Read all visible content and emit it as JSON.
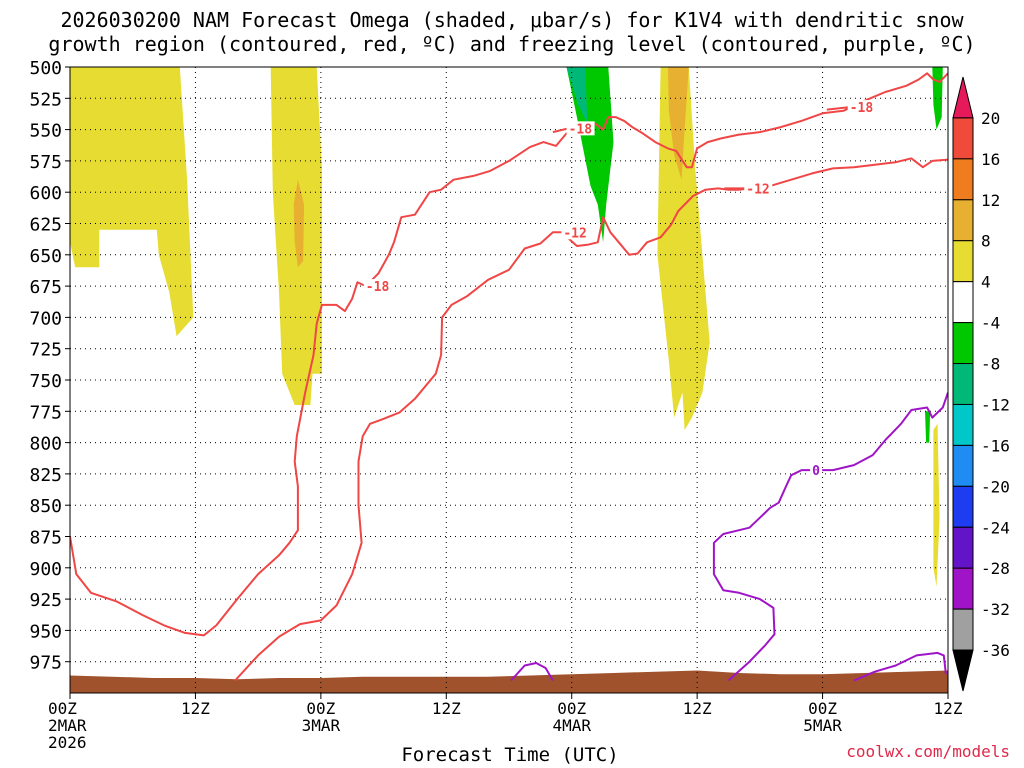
{
  "title_line1": "2026030200 NAM Forecast Omega (shaded, μbar/s) for K1V4 with dendritic snow",
  "title_line2": "growth region (contoured, red, ºC) and freezing level (contoured, purple, ºC)",
  "credit": "coolwx.com/models",
  "chart_data": {
    "type": "area",
    "xlabel": "Forecast Time (UTC)",
    "ylabel": "",
    "x_unit": "forecast hour",
    "xlim": [
      0,
      84
    ],
    "ylim": [
      500,
      1000
    ],
    "y_inverted": true,
    "y_ticks": [
      500,
      525,
      550,
      575,
      600,
      625,
      650,
      675,
      700,
      725,
      750,
      775,
      800,
      825,
      850,
      875,
      900,
      925,
      950,
      975
    ],
    "x_ticks": [
      {
        "x": 0,
        "lines": [
          "00Z",
          "2MAR",
          "2026"
        ]
      },
      {
        "x": 12,
        "lines": [
          "12Z"
        ]
      },
      {
        "x": 24,
        "lines": [
          "00Z",
          "3MAR"
        ]
      },
      {
        "x": 36,
        "lines": [
          "12Z"
        ]
      },
      {
        "x": 48,
        "lines": [
          "00Z",
          "4MAR"
        ]
      },
      {
        "x": 60,
        "lines": [
          "12Z"
        ]
      },
      {
        "x": 72,
        "lines": [
          "00Z",
          "5MAR"
        ]
      },
      {
        "x": 84,
        "lines": [
          "12Z"
        ]
      }
    ],
    "grid": true,
    "colorbar": {
      "labels": [
        "20",
        "16",
        "12",
        "8",
        "4",
        "-4",
        "-8",
        "-12",
        "-16",
        "-20",
        "-24",
        "-28",
        "-32",
        "-36"
      ],
      "colors": [
        "#e6195a",
        "#f04b3a",
        "#f07c20",
        "#e8b030",
        "#e6dc32",
        "#ffffff",
        "#00c800",
        "#00b878",
        "#00c8c8",
        "#1e8cf0",
        "#1e3cf0",
        "#6414c8",
        "#a014c8",
        "#a0a0a0",
        "#000000"
      ]
    },
    "omega_regions": [
      {
        "value": 4,
        "color": "#e6dc32",
        "points": [
          [
            0,
            500
          ],
          [
            10.5,
            500
          ],
          [
            11.2,
            590
          ],
          [
            11.8,
            700
          ],
          [
            10.2,
            715
          ],
          [
            9.5,
            680
          ],
          [
            8.5,
            650
          ],
          [
            8.3,
            630
          ],
          [
            6.2,
            630
          ],
          [
            4.5,
            630
          ],
          [
            2.8,
            630
          ],
          [
            2.8,
            660
          ],
          [
            0.5,
            660
          ],
          [
            0,
            640
          ]
        ]
      },
      {
        "value": 4,
        "color": "#e6dc32",
        "points": [
          [
            19.2,
            500
          ],
          [
            23.6,
            500
          ],
          [
            24.1,
            580
          ],
          [
            24.1,
            745
          ],
          [
            23.2,
            745
          ],
          [
            23,
            770
          ],
          [
            21.5,
            770
          ],
          [
            20.3,
            745
          ],
          [
            20,
            680
          ],
          [
            19.4,
            600
          ]
        ]
      },
      {
        "value": 8,
        "color": "#e8b030",
        "points": [
          [
            21.8,
            590
          ],
          [
            22.4,
            610
          ],
          [
            22.3,
            655
          ],
          [
            21.8,
            660
          ],
          [
            21.5,
            640
          ],
          [
            21.4,
            610
          ]
        ]
      },
      {
        "value": -8,
        "color": "#00c800",
        "points": [
          [
            47.5,
            500
          ],
          [
            51.5,
            500
          ],
          [
            52,
            560
          ],
          [
            51.3,
            610
          ],
          [
            51,
            640
          ],
          [
            50.5,
            610
          ],
          [
            49.8,
            595
          ],
          [
            48.5,
            540
          ]
        ]
      },
      {
        "value": -12,
        "color": "#00b878",
        "points": [
          [
            47.5,
            500
          ],
          [
            49.3,
            500
          ],
          [
            49.5,
            545
          ],
          [
            48.6,
            530
          ]
        ]
      },
      {
        "value": 4,
        "color": "#e6dc32",
        "points": [
          [
            56.5,
            500
          ],
          [
            59.2,
            500
          ],
          [
            59.8,
            580
          ],
          [
            61.2,
            720
          ],
          [
            60.5,
            760
          ],
          [
            59.5,
            780
          ],
          [
            58.8,
            790
          ],
          [
            58.6,
            760
          ],
          [
            57.8,
            780
          ],
          [
            57.3,
            735
          ],
          [
            56.2,
            650
          ]
        ]
      },
      {
        "value": 8,
        "color": "#e8b030",
        "points": [
          [
            57.2,
            500
          ],
          [
            59.2,
            500
          ],
          [
            58.8,
            550
          ],
          [
            58.5,
            590
          ],
          [
            57.8,
            570
          ],
          [
            57.3,
            535
          ]
        ]
      },
      {
        "value": -8,
        "color": "#00c800",
        "points": [
          [
            82.5,
            500
          ],
          [
            83.5,
            500
          ],
          [
            83.4,
            540
          ],
          [
            82.9,
            550
          ],
          [
            82.6,
            530
          ]
        ]
      },
      {
        "value": -8,
        "color": "#00c800",
        "points": [
          [
            81.8,
            775
          ],
          [
            82.3,
            775
          ],
          [
            82.2,
            800
          ],
          [
            81.9,
            800
          ]
        ]
      },
      {
        "value": 4,
        "color": "#e6dc32",
        "points": [
          [
            82.6,
            790
          ],
          [
            83.0,
            785
          ],
          [
            83.2,
            860
          ],
          [
            82.9,
            915
          ],
          [
            82.6,
            900
          ]
        ]
      }
    ],
    "contours": [
      {
        "label": "-18",
        "color": "#f04646",
        "points": [
          [
            0,
            875
          ],
          [
            0.6,
            905
          ],
          [
            2,
            920
          ],
          [
            4.5,
            927
          ],
          [
            7,
            938
          ],
          [
            9,
            946
          ],
          [
            11,
            952
          ],
          [
            12.8,
            954
          ],
          [
            14,
            946
          ],
          [
            16,
            925
          ],
          [
            18,
            905
          ],
          [
            20,
            890
          ],
          [
            21,
            880
          ],
          [
            21.8,
            870
          ],
          [
            21.8,
            835
          ],
          [
            21.5,
            815
          ],
          [
            21.7,
            795
          ],
          [
            22.5,
            760
          ],
          [
            23.3,
            730
          ],
          [
            23.6,
            705
          ],
          [
            24.1,
            690
          ],
          [
            25.5,
            690
          ],
          [
            26.3,
            695
          ],
          [
            27,
            685
          ],
          [
            27.5,
            672
          ],
          [
            28.3,
            675
          ],
          [
            29.5,
            665
          ],
          [
            30.5,
            650
          ],
          [
            31,
            640
          ],
          [
            31.7,
            620
          ],
          [
            33,
            618
          ],
          [
            34.4,
            600
          ],
          [
            35.5,
            598
          ],
          [
            36.7,
            590
          ],
          [
            38.6,
            587
          ],
          [
            40.2,
            583
          ],
          [
            42,
            575
          ],
          [
            44,
            564
          ],
          [
            45.3,
            560
          ],
          [
            46.5,
            563
          ],
          [
            47.5,
            553
          ],
          [
            48.6,
            547
          ],
          [
            49.6,
            547
          ],
          [
            50.2,
            545
          ],
          [
            51,
            550
          ],
          [
            51.5,
            540
          ],
          [
            52.2,
            540
          ],
          [
            53,
            543
          ],
          [
            53.8,
            548
          ],
          [
            54.8,
            553
          ],
          [
            56,
            560
          ],
          [
            57.2,
            565
          ],
          [
            58,
            567
          ],
          [
            59,
            580
          ],
          [
            59.5,
            580
          ],
          [
            60,
            565
          ],
          [
            61,
            560
          ],
          [
            62.3,
            557
          ],
          [
            64,
            554
          ],
          [
            66,
            552
          ],
          [
            68,
            548
          ],
          [
            70,
            543
          ],
          [
            72,
            537
          ],
          [
            74,
            535
          ],
          [
            76,
            527
          ],
          [
            78,
            520
          ],
          [
            80,
            515
          ],
          [
            81.2,
            510
          ],
          [
            82,
            505
          ],
          [
            82.6,
            510
          ],
          [
            83.2,
            512
          ],
          [
            84,
            505
          ]
        ],
        "label_at": [
          28.3,
          675
        ]
      },
      {
        "label": "-18",
        "color": "#f04646",
        "points": [
          [
            46.2,
            552
          ],
          [
            47.7,
            549
          ]
        ],
        "label_at": [
          47.7,
          549
        ]
      },
      {
        "label": "-18",
        "color": "#f04646",
        "points": [
          [
            72.4,
            534
          ],
          [
            74.6,
            532
          ]
        ],
        "label_at": [
          74.6,
          532
        ]
      },
      {
        "label": "-12",
        "color": "#f04646",
        "points": [
          [
            15.8,
            990
          ],
          [
            18,
            970
          ],
          [
            20,
            955
          ],
          [
            22,
            945
          ],
          [
            24,
            942
          ],
          [
            25.5,
            930
          ],
          [
            27,
            905
          ],
          [
            27.9,
            880
          ],
          [
            27.6,
            850
          ],
          [
            27.6,
            815
          ],
          [
            28,
            795
          ],
          [
            28.7,
            785
          ],
          [
            30,
            781
          ],
          [
            31.5,
            776
          ],
          [
            33,
            765
          ],
          [
            35,
            745
          ],
          [
            35.5,
            730
          ],
          [
            35.6,
            700
          ],
          [
            36.5,
            690
          ],
          [
            38,
            683
          ],
          [
            40,
            670
          ],
          [
            42,
            662
          ],
          [
            43.5,
            645
          ],
          [
            45,
            641
          ],
          [
            46.2,
            632
          ],
          [
            47.2,
            632
          ],
          [
            47.7,
            637
          ],
          [
            48.5,
            643
          ],
          [
            49.5,
            642
          ],
          [
            50.5,
            640
          ],
          [
            51,
            620
          ],
          [
            51.7,
            632
          ],
          [
            52.5,
            640
          ],
          [
            53.5,
            650
          ],
          [
            54.3,
            649
          ],
          [
            55.2,
            640
          ],
          [
            56.5,
            636
          ],
          [
            57.5,
            626
          ],
          [
            58.2,
            615
          ],
          [
            59.6,
            603
          ],
          [
            60.8,
            598
          ],
          [
            62,
            597
          ],
          [
            63,
            598
          ],
          [
            64,
            598
          ],
          [
            65,
            597
          ],
          [
            67,
            595
          ],
          [
            69,
            590
          ],
          [
            71,
            585
          ],
          [
            73,
            581
          ],
          [
            75,
            580
          ],
          [
            77,
            578
          ],
          [
            79,
            576
          ],
          [
            80.5,
            573
          ],
          [
            81.6,
            580
          ],
          [
            82.5,
            575
          ],
          [
            84,
            574
          ]
        ],
        "label_at": [
          47.2,
          632
        ]
      },
      {
        "label": "-12",
        "color": "#f04646",
        "points": [
          [
            62.6,
            597
          ],
          [
            64.7,
            597
          ]
        ],
        "label_at": [
          64.7,
          597
        ]
      },
      {
        "label": "0",
        "color": "#a014c8",
        "points": [
          [
            42.2,
            990
          ],
          [
            43.5,
            978
          ],
          [
            44.6,
            976
          ],
          [
            45.5,
            980
          ],
          [
            46.2,
            990
          ]
        ],
        "label_at": null
      },
      {
        "label": "0",
        "color": "#a014c8",
        "points": [
          [
            63,
            990
          ],
          [
            65,
            975
          ],
          [
            66.5,
            962
          ],
          [
            67.4,
            953
          ],
          [
            67.3,
            932
          ],
          [
            66,
            925
          ],
          [
            64,
            920
          ],
          [
            62.5,
            918
          ],
          [
            61.6,
            905
          ],
          [
            61.6,
            880
          ],
          [
            62.5,
            873
          ],
          [
            64,
            870
          ],
          [
            65,
            868
          ],
          [
            66,
            860
          ],
          [
            67,
            852
          ],
          [
            67.8,
            848
          ],
          [
            68.5,
            835
          ],
          [
            69,
            826
          ],
          [
            70,
            822
          ],
          [
            71,
            822
          ],
          [
            73,
            822
          ],
          [
            75,
            818
          ],
          [
            76.8,
            810
          ],
          [
            78,
            798
          ],
          [
            79.5,
            785
          ],
          [
            80.5,
            774
          ],
          [
            82,
            772
          ],
          [
            82.5,
            780
          ],
          [
            83.5,
            772
          ],
          [
            84,
            760
          ]
        ],
        "label_at": [
          71,
          822
        ]
      },
      {
        "label": "0",
        "color": "#a014c8",
        "points": [
          [
            75,
            990
          ],
          [
            77,
            983
          ],
          [
            79,
            978
          ],
          [
            81,
            970
          ],
          [
            83,
            968
          ],
          [
            83.6,
            970
          ],
          [
            83.8,
            985
          ]
        ],
        "label_at": null
      }
    ],
    "terrain": {
      "color": "#a0522d",
      "x": [
        0,
        4,
        8,
        12,
        16,
        20,
        24,
        28,
        32,
        36,
        40,
        44,
        48,
        52,
        56,
        60,
        64,
        68,
        72,
        76,
        80,
        84
      ],
      "surface_pressure": [
        986,
        987,
        988,
        988,
        989,
        988,
        988,
        987,
        987,
        987,
        987,
        986,
        985,
        984,
        983,
        982,
        984,
        985,
        985,
        984,
        983,
        982
      ]
    }
  }
}
